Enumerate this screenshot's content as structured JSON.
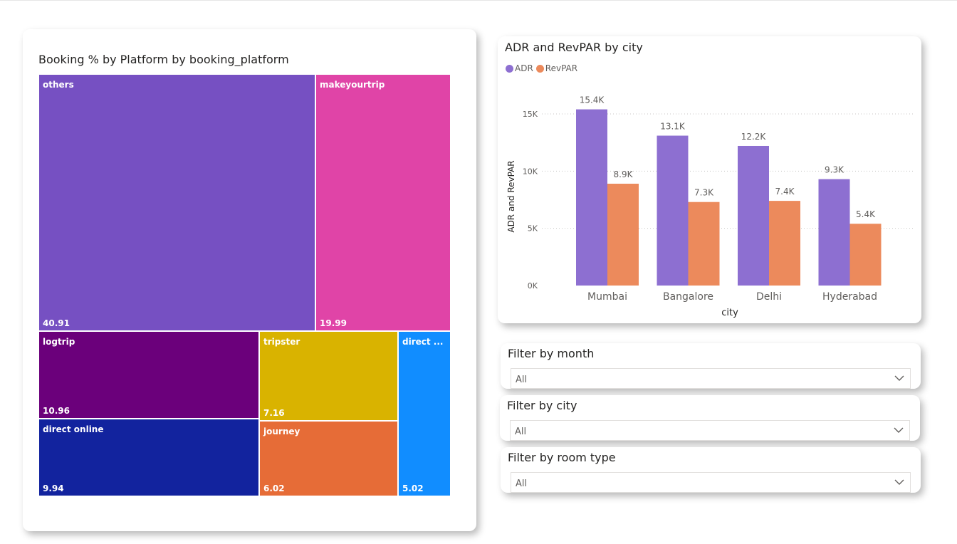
{
  "treemap": {
    "title": "Booking % by Platform by booking_platform",
    "tiles": [
      {
        "label": "others",
        "value": "40.91",
        "color": "#7650c2"
      },
      {
        "label": "makeyourtrip",
        "value": "19.99",
        "color": "#e044a7"
      },
      {
        "label": "logtrip",
        "value": "10.96",
        "color": "#6b007b"
      },
      {
        "label": "tripster",
        "value": "7.16",
        "color": "#d9b300"
      },
      {
        "label": "direct ...",
        "value": "5.02",
        "color": "#118dff"
      },
      {
        "label": "direct online",
        "value": "9.94",
        "color": "#12239e"
      },
      {
        "label": "journey",
        "value": "6.02",
        "color": "#e66c37"
      }
    ]
  },
  "bar_chart": {
    "title": "ADR and RevPAR by city",
    "legend": [
      {
        "name": "ADR",
        "color": "#8d6fd1"
      },
      {
        "name": "RevPAR",
        "color": "#ec8a5c"
      }
    ]
  },
  "chart_data": {
    "type": "bar",
    "title": "ADR and RevPAR by city",
    "xlabel": "city",
    "ylabel": "ADR and RevPAR",
    "categories": [
      "Mumbai",
      "Bangalore",
      "Delhi",
      "Hyderabad"
    ],
    "series": [
      {
        "name": "ADR",
        "values": [
          15400,
          13100,
          12200,
          9300
        ],
        "labels": [
          "15.4K",
          "13.1K",
          "12.2K",
          "9.3K"
        ],
        "color": "#8d6fd1"
      },
      {
        "name": "RevPAR",
        "values": [
          8900,
          7300,
          7400,
          5400
        ],
        "labels": [
          "8.9K",
          "7.3K",
          "7.4K",
          "5.4K"
        ],
        "color": "#ec8a5c"
      }
    ],
    "ylim": [
      0,
      15000
    ],
    "yticks": [
      0,
      5000,
      10000,
      15000
    ],
    "ytick_labels": [
      "0K",
      "5K",
      "10K",
      "15K"
    ],
    "grid": true,
    "legend_position": "top-left"
  },
  "slicers": {
    "month": {
      "title": "Filter by month",
      "value": "All"
    },
    "city": {
      "title": "Filter by city",
      "value": "All"
    },
    "room": {
      "title": "Filter by room type",
      "value": "All"
    }
  }
}
